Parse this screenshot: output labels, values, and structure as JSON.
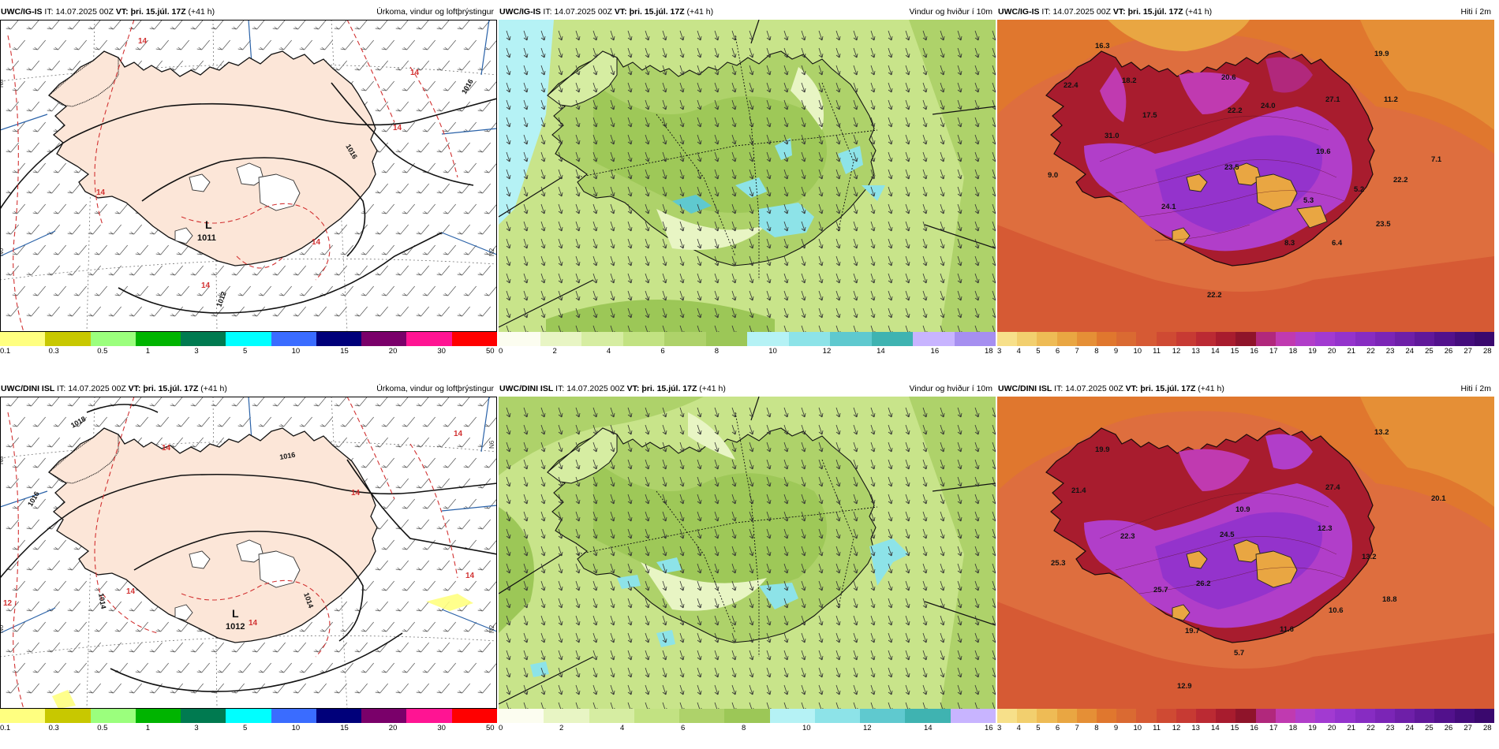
{
  "colorbars": {
    "precip": {
      "colors": [
        "#ffff80",
        "#c8c800",
        "#9bff7d",
        "#00b400",
        "#007a50",
        "#00ffff",
        "#3a6cff",
        "#00007a",
        "#7a006a",
        "#ff1493",
        "#ff0000"
      ],
      "ticks": [
        "0.1",
        "0.3",
        "0.5",
        "1",
        "3",
        "5",
        "10",
        "15",
        "20",
        "30",
        "50"
      ]
    },
    "wind": {
      "top_colors": [
        "#fcfdf0",
        "#e8f5c4",
        "#d6eda2",
        "#c2e282",
        "#aed26a",
        "#9cc757",
        "#b5f2f5",
        "#8de3e8",
        "#5fc9cf",
        "#3fb3b1",
        "#c8b4ff",
        "#a68ff0"
      ],
      "top_ticks": [
        "0",
        "2",
        "4",
        "6",
        "8",
        "10",
        "12",
        "14",
        "16",
        "18"
      ],
      "bottom_colors": [
        "#fcfdf0",
        "#e8f5c4",
        "#d6eda2",
        "#c2e282",
        "#aed26a",
        "#9cc757",
        "#b5f2f5",
        "#8de3e8",
        "#5fc9cf",
        "#3fb3b1",
        "#c8b4ff"
      ],
      "bottom_ticks": [
        "0",
        "2",
        "4",
        "6",
        "8",
        "10",
        "12",
        "14",
        "16"
      ]
    },
    "temp": {
      "colors": [
        "#f7e08a",
        "#f2cf6e",
        "#eebb55",
        "#e9a642",
        "#e58f36",
        "#e0772e",
        "#da6a32",
        "#d65a34",
        "#cf4a33",
        "#c73a33",
        "#bb2a33",
        "#a81c2e",
        "#8f142a",
        "#b1287c",
        "#c03ab0",
        "#b13ec9",
        "#a23ad1",
        "#9433cc",
        "#872cc2",
        "#7b25b6",
        "#6e1fa8",
        "#60189a",
        "#52118c",
        "#440c7c",
        "#3a086e"
      ],
      "ticks": [
        "3",
        "4",
        "5",
        "6",
        "7",
        "8",
        "9",
        "10",
        "11",
        "12",
        "13",
        "14",
        "15",
        "16",
        "17",
        "18",
        "19",
        "20",
        "21",
        "22",
        "23",
        "24",
        "25",
        "26",
        "27",
        "28"
      ]
    }
  },
  "panels": [
    {
      "header": {
        "model": "UWC/IG-IS",
        "it_label": "IT:",
        "it": "14.07.2025 00Z",
        "vt_label": "VT:",
        "vt": "þri. 15.júl. 17Z",
        "offset": "(+41 h)",
        "title": "Úrkoma, vindur og loftþrýstingur"
      },
      "pressure": {
        "low_label": "L",
        "low_value": "1011",
        "isobar_labels": [
          "1016",
          "1016",
          "1012"
        ]
      },
      "temp_labels": [
        "14",
        "14",
        "14",
        "14",
        "14",
        "14"
      ],
      "grid_labels": [
        "N8",
        "N6",
        "N2"
      ],
      "shaded": []
    },
    {
      "header": {
        "model": "UWC/IG-IS",
        "it_label": "IT:",
        "it": "14.07.2025 00Z",
        "vt_label": "VT:",
        "vt": "þri. 15.júl. 17Z",
        "offset": "(+41 h)",
        "title": "Vindur og hviður í 10m"
      }
    },
    {
      "header": {
        "model": "UWC/IG-IS",
        "it_label": "IT:",
        "it": "14.07.2025 00Z",
        "vt_label": "VT:",
        "vt": "þri. 15.júl. 17Z",
        "offset": "(+41 h)",
        "title": "Hiti í 2m"
      },
      "values": [
        "16.3",
        "19.9",
        "22.4",
        "18.2",
        "20.6",
        "17.5",
        "22.2",
        "24.0",
        "27.1",
        "11.2",
        "31.0",
        "19.6",
        "7.1",
        "9.0",
        "23.5",
        "5.2",
        "22.2",
        "24.1",
        "5.3",
        "23.5",
        "6.4",
        "8.3",
        "22.2"
      ]
    },
    {
      "header": {
        "model": "UWC/DINI ISL",
        "it_label": "IT:",
        "it": "14.07.2025 00Z",
        "vt_label": "VT:",
        "vt": "þri. 15.júl. 17Z",
        "offset": "(+41 h)",
        "title": "Úrkoma, vindur og loftþrýstingur"
      },
      "pressure": {
        "low_label": "L",
        "low_value": "1012",
        "isobar_labels": [
          "1018",
          "1016",
          "1014",
          "1014",
          "1016"
        ]
      },
      "temp_labels": [
        "14",
        "14",
        "14",
        "14",
        "14",
        "12",
        "14"
      ],
      "grid_labels": [
        "N8",
        "N6",
        "N6",
        "N2"
      ],
      "shaded": []
    },
    {
      "header": {
        "model": "UWC/DINI ISL",
        "it_label": "IT:",
        "it": "14.07.2025 00Z",
        "vt_label": "VT:",
        "vt": "þri. 15.júl. 17Z",
        "offset": "(+41 h)",
        "title": "Vindur og hviður í 10m"
      }
    },
    {
      "header": {
        "model": "UWC/DINI ISL",
        "it_label": "IT:",
        "it": "14.07.2025 00Z",
        "vt_label": "VT:",
        "vt": "þri. 15.júl. 17Z",
        "offset": "(+41 h)",
        "title": "Hiti í 2m"
      },
      "values": [
        "13.2",
        "19.9",
        "21.4",
        "27.4",
        "10.9",
        "22.3",
        "24.5",
        "20.1",
        "25.3",
        "12.3",
        "13.2",
        "25.7",
        "26.2",
        "10.6",
        "11.6",
        "19.7",
        "5.7",
        "12.9",
        "18.8"
      ]
    }
  ]
}
